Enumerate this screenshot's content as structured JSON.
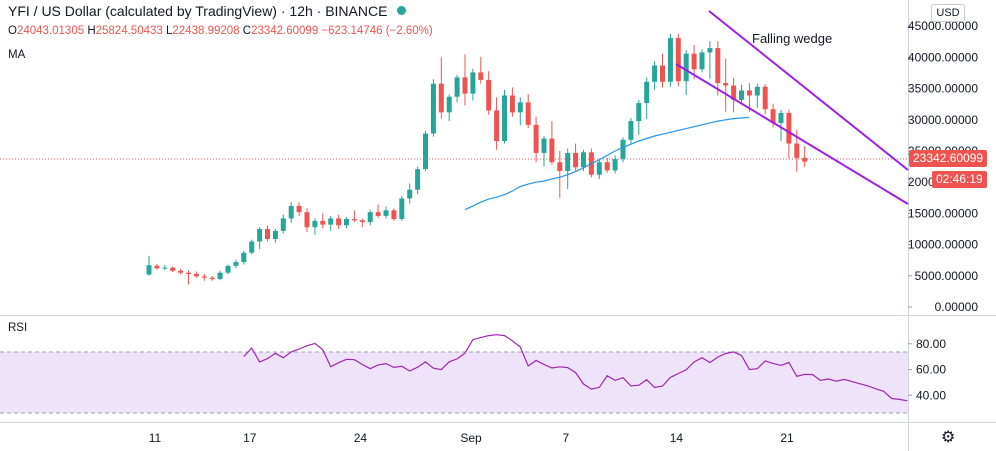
{
  "header": {
    "title": "YFI / US Dollar (calculated by TradingView) · 12h · BINANCE",
    "ohlc": {
      "o_label": "O",
      "o": "24043.01305",
      "h_label": "H",
      "h": "25824.50433",
      "l_label": "L",
      "l": "22438.99208",
      "c_label": "C",
      "c": "23342.60099",
      "change": "−623.14746 (−2.60%)"
    },
    "ma_label": "MA",
    "rsi_label": "RSI"
  },
  "currency_button": "USD",
  "price_tag": "23342.60099",
  "countdown_tag": "02:46:19",
  "annotation": "Falling wedge",
  "colors": {
    "up": "#26a69a",
    "down": "#ef5350",
    "ma": "#2196f3",
    "rsi": "#9c27b0",
    "wedge": "#9c1ee9",
    "rsi_band": "#efe3fb"
  },
  "chart_data": [
    {
      "type": "candlestick",
      "interval": "12h",
      "y_axis_ticks": [
        "45000.00000",
        "40000.00000",
        "35000.00000",
        "30000.00000",
        "25000.00000",
        "20000.00000",
        "15000.00000",
        "10000.00000",
        "5000.00000",
        "0.00000"
      ],
      "ylim": [
        0,
        46000
      ],
      "x_ticks": [
        {
          "label": "11",
          "index": 0
        },
        {
          "label": "17",
          "index": 12
        },
        {
          "label": "24",
          "index": 26
        },
        {
          "label": "Sep",
          "index": 40
        },
        {
          "label": "7",
          "index": 52
        },
        {
          "label": "14",
          "index": 66
        },
        {
          "label": "21",
          "index": 80
        }
      ],
      "ohlc": [
        [
          5200,
          8200,
          5000,
          6700
        ],
        [
          6600,
          6900,
          6000,
          6200
        ],
        [
          6200,
          6700,
          5900,
          6300
        ],
        [
          6300,
          6500,
          5600,
          5800
        ],
        [
          5800,
          6100,
          5200,
          5500
        ],
        [
          5500,
          5900,
          3600,
          5300
        ],
        [
          5300,
          5700,
          4700,
          4900
        ],
        [
          4900,
          5300,
          4200,
          4700
        ],
        [
          4700,
          5000,
          4200,
          4500
        ],
        [
          4500,
          5800,
          4300,
          5500
        ],
        [
          5500,
          6800,
          5200,
          6600
        ],
        [
          6600,
          7600,
          6200,
          7200
        ],
        [
          7200,
          9000,
          6800,
          8700
        ],
        [
          8700,
          10800,
          8400,
          10500
        ],
        [
          10500,
          12800,
          9300,
          12500
        ],
        [
          12500,
          13000,
          10500,
          10900
        ],
        [
          10900,
          12500,
          10300,
          12200
        ],
        [
          12200,
          14800,
          11800,
          14200
        ],
        [
          14200,
          16800,
          13500,
          16200
        ],
        [
          16200,
          16800,
          14600,
          15200
        ],
        [
          15200,
          15800,
          12000,
          12800
        ],
        [
          12800,
          14200,
          11600,
          13800
        ],
        [
          13800,
          15000,
          12600,
          13200
        ],
        [
          13200,
          14600,
          12200,
          14200
        ],
        [
          14200,
          14800,
          12500,
          13100
        ],
        [
          13100,
          14400,
          12600,
          14100
        ],
        [
          14100,
          15500,
          13600,
          13900
        ],
        [
          13900,
          14200,
          12800,
          13600
        ],
        [
          13600,
          15600,
          13100,
          15200
        ],
        [
          15200,
          16400,
          14300,
          14600
        ],
        [
          14600,
          16100,
          14200,
          15500
        ],
        [
          15500,
          15800,
          13800,
          14100
        ],
        [
          14100,
          17800,
          13800,
          17400
        ],
        [
          17400,
          19800,
          16600,
          18800
        ],
        [
          18800,
          22500,
          18100,
          22100
        ],
        [
          22100,
          28200,
          21800,
          27800
        ],
        [
          27800,
          36500,
          27300,
          35800
        ],
        [
          35800,
          40000,
          30200,
          31200
        ],
        [
          31200,
          34100,
          29800,
          33700
        ],
        [
          33700,
          37200,
          32800,
          36800
        ],
        [
          36800,
          40500,
          32300,
          34200
        ],
        [
          34200,
          38200,
          33100,
          37600
        ],
        [
          37600,
          40100,
          35800,
          36400
        ],
        [
          36400,
          37800,
          30800,
          31500
        ],
        [
          31500,
          33600,
          25200,
          26600
        ],
        [
          26600,
          34800,
          26200,
          33900
        ],
        [
          33900,
          35200,
          30500,
          31200
        ],
        [
          31200,
          33600,
          29100,
          32800
        ],
        [
          32800,
          34100,
          28700,
          29200
        ],
        [
          29200,
          30500,
          23200,
          24700
        ],
        [
          24700,
          27400,
          22500,
          27000
        ],
        [
          27000,
          29800,
          22800,
          23200
        ],
        [
          23200,
          25000,
          17500,
          21800
        ],
        [
          21800,
          25400,
          18900,
          24700
        ],
        [
          24700,
          26200,
          21800,
          22400
        ],
        [
          22400,
          25200,
          21800,
          24800
        ],
        [
          24800,
          25400,
          20800,
          21200
        ],
        [
          21200,
          23800,
          20500,
          23200
        ],
        [
          23200,
          23900,
          21500,
          21900
        ],
        [
          21900,
          24300,
          21400,
          23700
        ],
        [
          23700,
          27200,
          23200,
          26800
        ],
        [
          26800,
          30300,
          26100,
          29800
        ],
        [
          29800,
          33200,
          27600,
          32700
        ],
        [
          32700,
          36800,
          30100,
          36100
        ],
        [
          36100,
          39400,
          34800,
          38700
        ],
        [
          38700,
          40600,
          35200,
          36100
        ],
        [
          36100,
          43800,
          35300,
          43100
        ],
        [
          43100,
          43800,
          35400,
          36200
        ],
        [
          36200,
          41200,
          34000,
          40600
        ],
        [
          40600,
          42000,
          36500,
          38100
        ],
        [
          38100,
          41300,
          37600,
          40800
        ],
        [
          40800,
          42600,
          36600,
          41500
        ],
        [
          41500,
          42600,
          33900,
          35900
        ],
        [
          35900,
          39800,
          31300,
          35500
        ],
        [
          35500,
          36700,
          31200,
          33200
        ],
        [
          33200,
          35600,
          32800,
          34700
        ],
        [
          34700,
          35900,
          31300,
          33900
        ],
        [
          33900,
          35800,
          31900,
          35300
        ],
        [
          35300,
          35700,
          30900,
          31700
        ],
        [
          31700,
          32600,
          28800,
          29500
        ],
        [
          29500,
          31600,
          26600,
          31100
        ],
        [
          31100,
          31600,
          23800,
          26200
        ],
        [
          26200,
          28400,
          21700,
          23900
        ],
        [
          23900,
          25800,
          22400,
          23300
        ]
      ]
    },
    {
      "type": "line",
      "name": "MA",
      "x_start_index": 40,
      "values": [
        15600,
        16200,
        16800,
        17300,
        17600,
        18000,
        18600,
        19300,
        19700,
        20000,
        20200,
        20500,
        20800,
        21200,
        21700,
        22300,
        23000,
        23600,
        24300,
        25000,
        25600,
        26100,
        26600,
        27000,
        27400,
        27700,
        28000,
        28300,
        28600,
        28900,
        29200,
        29500,
        29800,
        30000,
        30200,
        30300,
        30400
      ]
    },
    {
      "type": "line",
      "name": "RSI",
      "ylim": [
        20,
        100
      ],
      "y_axis_ticks": [
        "80.00",
        "60.00",
        "40.00"
      ],
      "band": [
        30,
        70
      ],
      "x_start_index": 12,
      "values": [
        70.1,
        76.6,
        65.8,
        68.5,
        72.6,
        69.1,
        73.7,
        75.9,
        78.4,
        80.3,
        75.3,
        62.2,
        65.3,
        67.9,
        67.6,
        63.9,
        60.6,
        63.5,
        64.6,
        61.6,
        62.5,
        58.8,
        61.8,
        65.9,
        61.0,
        59.9,
        66.0,
        68.2,
        72.7,
        83.2,
        84.8,
        86.3,
        87.0,
        86.3,
        82.3,
        77.5,
        62.7,
        67.0,
        64.0,
        61.2,
        62.1,
        61.5,
        57.6,
        48.7,
        44.8,
        46.1,
        55.2,
        51.5,
        53.6,
        47.3,
        47.8,
        52.1,
        46.0,
        47.1,
        53.9,
        56.9,
        59.8,
        65.8,
        69.2,
        65.4,
        69.6,
        72.4,
        73.7,
        70.9,
        60.0,
        60.6,
        66.7,
        64.7,
        63.2,
        65.4,
        54.7,
        56.2,
        56.0,
        51.5,
        52.6,
        50.9,
        52.3,
        50.6,
        48.9,
        47.3,
        45.0,
        43.1,
        37.5,
        36.8,
        35.7
      ]
    }
  ]
}
